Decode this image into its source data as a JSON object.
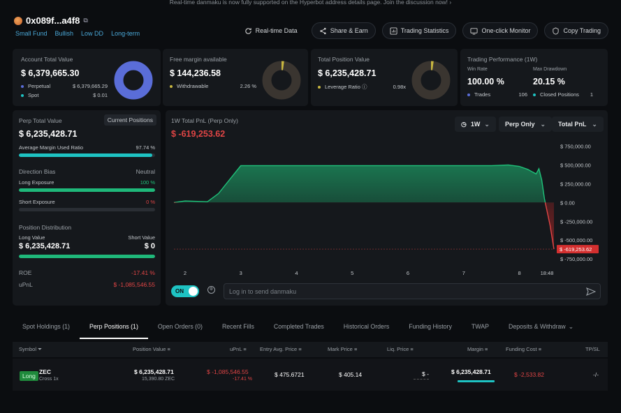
{
  "banner": "Real-time danmaku is now fully supported on the Hyperbot address details page. Join the discussion now!",
  "banner_arrow": "›",
  "address": "0x089f...a4f8",
  "tags": [
    "Small Fund",
    "Bullish",
    "Low DD",
    "Long-term"
  ],
  "header_buttons": {
    "realtime": "Real-time Data",
    "share": "Share & Earn",
    "stats": "Trading Statistics",
    "monitor": "One-click Monitor",
    "copy": "Copy Trading"
  },
  "account": {
    "label": "Account Total Value",
    "value": "$ 6,379,665.30",
    "perp_label": "Perpetual",
    "perp_value": "$ 6,379,665.29",
    "spot_label": "Spot",
    "spot_value": "$ 0.01"
  },
  "margin": {
    "label": "Free margin available",
    "value": "$ 144,236.58",
    "withdraw_label": "Withdrawable",
    "withdraw_value": "2.26 %"
  },
  "position": {
    "label": "Total Position Value",
    "value": "$ 6,235,428.71",
    "lev_label": "Leverage Ratio",
    "lev_value": "0.98x"
  },
  "performance": {
    "label": "Trading Performance (1W)",
    "win_label": "Win Rate",
    "win_value": "100.00 %",
    "dd_label": "Max Drawdown",
    "dd_value": "20.15 %",
    "trades_label": "Trades",
    "trades_value": "106",
    "closed_label": "Closed Positions",
    "closed_value": "1"
  },
  "perp": {
    "label": "Perp Total Value",
    "current_btn": "Current Positions",
    "value": "$ 6,235,428.71",
    "amu_label": "Average Margin Used Ratio",
    "amu_value": "97.74 %",
    "amu_pct": 97.74,
    "bias_label": "Direction Bias",
    "bias_value": "Neutral",
    "long_label": "Long Exposure",
    "long_value": "100 %",
    "long_pct": 100,
    "short_label": "Short Exposure",
    "short_value": "0 %",
    "short_pct": 0,
    "dist_label": "Position Distribution",
    "lv_label": "Long Value",
    "sv_label": "Short Value",
    "lv_value": "$ 6,235,428.71",
    "sv_value": "$ 0",
    "dist_pct": 100,
    "roe_label": "ROE",
    "roe_value": "-17.41 %",
    "upnl_label": "uPnL",
    "upnl_value": "$ -1,085,546.55"
  },
  "pnl": {
    "title": "1W Total PnL (Perp Only)",
    "value": "$ -619,253.62",
    "range": "1W",
    "filter": "Perp Only",
    "metric": "Total PnL"
  },
  "chart_data": {
    "type": "area",
    "x": [
      1.8,
      2.0,
      2.4,
      2.6,
      3.0,
      3.7,
      4.5,
      5.5,
      6.5,
      7.5,
      7.8,
      8.0,
      8.15,
      8.3,
      8.35,
      8.4,
      8.45,
      8.55,
      8.62
    ],
    "y": [
      0,
      20000,
      10000,
      120000,
      490000,
      490000,
      490000,
      490000,
      490000,
      490000,
      500000,
      480000,
      440000,
      380000,
      450000,
      300000,
      50000,
      -300000,
      -619253.62
    ],
    "x_ticks": [
      "2",
      "3",
      "4",
      "5",
      "6",
      "7",
      "8",
      "18:48"
    ],
    "y_ticks": [
      "$ 750,000.00",
      "$ 500,000.00",
      "$ 250,000.00",
      "$ 0.00",
      "$ -250,000.00",
      "$ -500,000.00",
      "$ -750,000.00"
    ],
    "y_tick_values": [
      750000,
      500000,
      250000,
      0,
      -250000,
      -500000,
      -750000
    ],
    "ylim": [
      -850000,
      800000
    ],
    "current_label": "$ -619,253.62"
  },
  "danmaku": {
    "toggle": "ON",
    "placeholder": "Log in to send danmaku"
  },
  "tabs": [
    "Spot Holdings (1)",
    "Perp Positions (1)",
    "Open Orders (0)",
    "Recent Fills",
    "Completed Trades",
    "Historical Orders",
    "Funding History",
    "TWAP",
    "Deposits & Withdraw"
  ],
  "table": {
    "headers": [
      "Symbol",
      "Position Value",
      "uPnL",
      "Entry Avg. Price",
      "Mark Price",
      "Liq. Price",
      "Margin",
      "Funding Cost",
      "TP/SL"
    ],
    "row": {
      "side": "Long",
      "coin": "ZEC",
      "mode": "Cross 1x",
      "pos_value": "$ 6,235,428.71",
      "pos_size": "15,390.80 ZEC",
      "upnl": "$ -1,085,546.55",
      "upnl_pct": "-17.41 %",
      "entry": "$ 475.6721",
      "mark": "$ 405.14",
      "liq": "$ -",
      "margin": "$ 6,235,428.71",
      "funding": "$ -2,533.82",
      "tpsl": "-/-"
    }
  },
  "colors": {
    "accent": "#1fc27a",
    "negative": "#e04545",
    "teal": "#1ec3c3",
    "donut": "#5a6dd8"
  }
}
